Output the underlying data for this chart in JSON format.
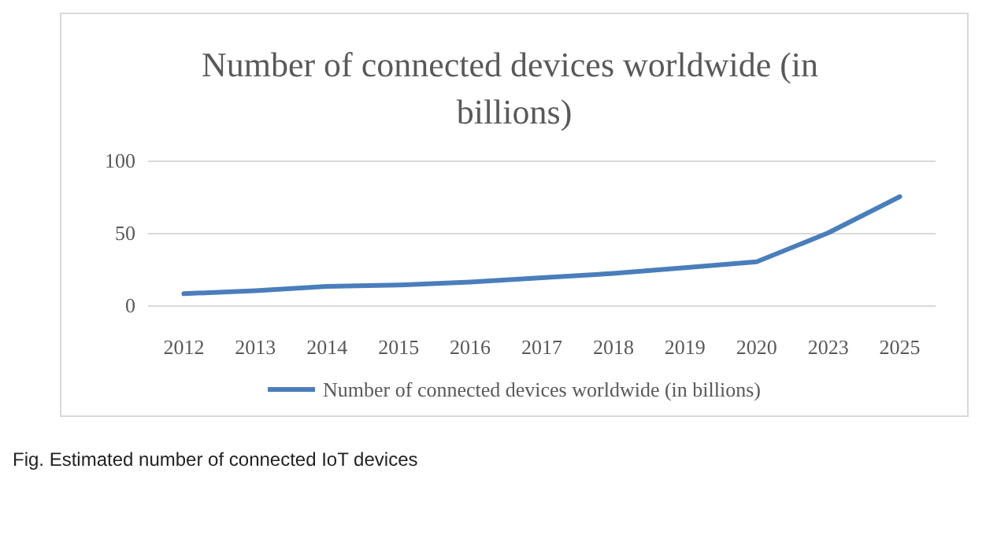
{
  "chart_data": {
    "type": "line",
    "title": "Number of connected devices worldwide (in billions)",
    "categories": [
      "2012",
      "2013",
      "2014",
      "2015",
      "2016",
      "2017",
      "2018",
      "2019",
      "2020",
      "2023",
      "2025"
    ],
    "series": [
      {
        "name": "Number of connected devices worldwide (in billions)",
        "color": "#4a7ebb",
        "values": [
          8,
          10,
          13,
          14,
          16,
          19,
          22,
          26,
          30,
          50,
          75
        ]
      }
    ],
    "ylim": [
      0,
      100
    ],
    "yticks": [
      0,
      50,
      100
    ],
    "grid": "y",
    "legend": "bottom",
    "marker": "none",
    "line_style": "solid",
    "annotations": [
      "Fig. Estimated number of connected IoT devices"
    ]
  }
}
